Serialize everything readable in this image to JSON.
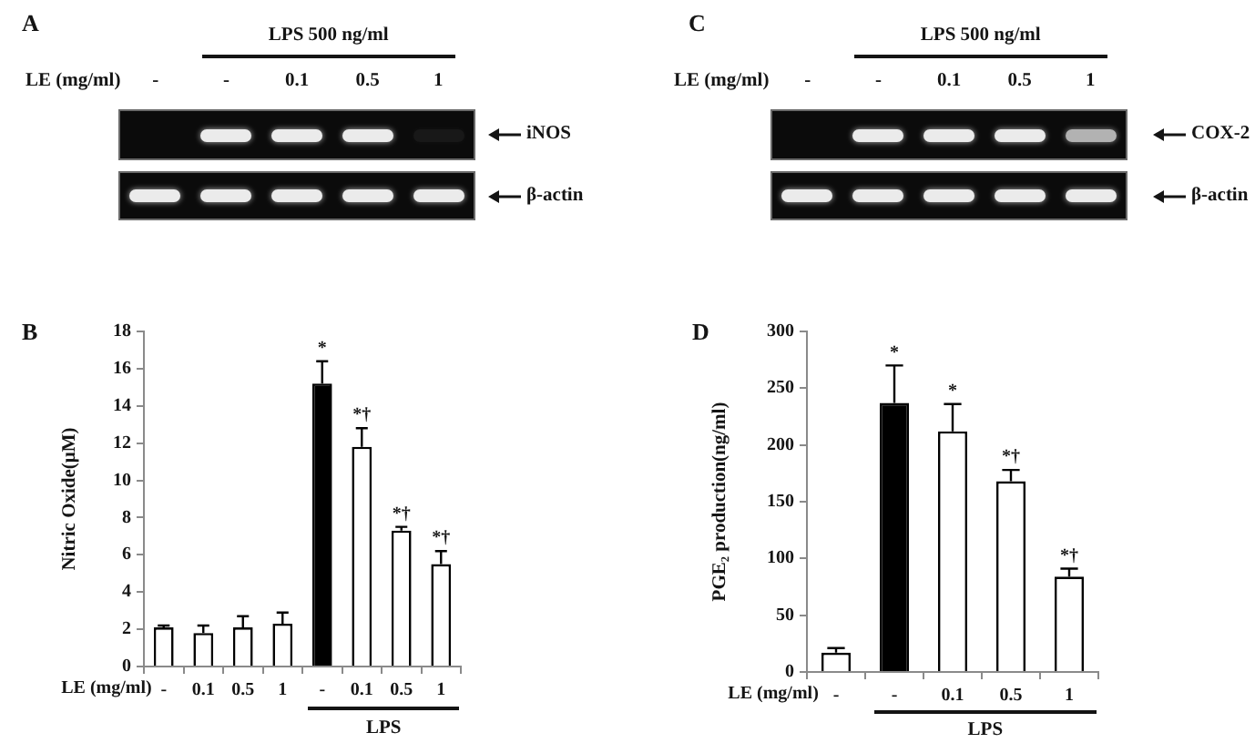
{
  "chart_data": [
    {
      "type": "other",
      "title": "A",
      "xlabel": "LE (mg/ml)",
      "categories": [
        "-",
        "-",
        "0.1",
        "0.5",
        "1"
      ],
      "annotations": [
        "LPS 500 ng/ml",
        "iNOS",
        "β-actin"
      ]
    },
    {
      "type": "other",
      "title": "C",
      "xlabel": "LE (mg/ml)",
      "categories": [
        "-",
        "-",
        "0.1",
        "0.5",
        "1"
      ],
      "annotations": [
        "LPS 500 ng/ml",
        "COX-2",
        "β-actin"
      ]
    },
    {
      "type": "bar",
      "title": "B",
      "xlabel": "LE (mg/ml)",
      "ylabel": "Nitric Oxide(μM)",
      "categories": [
        "-",
        "0.1",
        "0.5",
        "1",
        "-",
        "0.1",
        "0.5",
        "1"
      ],
      "values": [
        2.1,
        1.8,
        2.1,
        2.3,
        15.2,
        11.8,
        7.3,
        5.5
      ],
      "colors": [
        "#ffffff",
        "#ffffff",
        "#ffffff",
        "#ffffff",
        "#000000",
        "#ffffff",
        "#ffffff",
        "#ffffff"
      ],
      "errors": [
        [
          2.1,
          2.2
        ],
        [
          1.8,
          2.2
        ],
        [
          2.1,
          2.7
        ],
        [
          2.3,
          2.9
        ],
        [
          15.2,
          16.4
        ],
        [
          11.8,
          12.8
        ],
        [
          7.3,
          7.5
        ],
        [
          5.5,
          6.2
        ]
      ],
      "value_labels": [
        null,
        null,
        null,
        null,
        "*",
        "*†",
        "*†",
        "*†"
      ],
      "ylim": [
        0,
        18
      ],
      "yticks": [
        0,
        2,
        4,
        6,
        8,
        10,
        12,
        14,
        16,
        18
      ],
      "annotations": [
        "LPS"
      ]
    },
    {
      "type": "bar",
      "title": "D",
      "xlabel": "LE (mg/ml)",
      "ylabel": "PGE₂ production(ng/ml)",
      "categories": [
        "-",
        "-",
        "0.1",
        "0.5",
        "1"
      ],
      "values": [
        17,
        237,
        212,
        168,
        84
      ],
      "colors": [
        "#ffffff",
        "#000000",
        "#ffffff",
        "#ffffff",
        "#ffffff"
      ],
      "errors": [
        [
          17,
          21
        ],
        [
          237,
          270
        ],
        [
          212,
          236
        ],
        [
          168,
          178
        ],
        [
          84,
          91
        ]
      ],
      "value_labels": [
        null,
        "*",
        "*",
        "*†",
        "*†"
      ],
      "ylim": [
        0,
        300
      ],
      "yticks": [
        0,
        50,
        100,
        150,
        200,
        250,
        300
      ],
      "annotations": [
        "LPS"
      ]
    }
  ]
}
